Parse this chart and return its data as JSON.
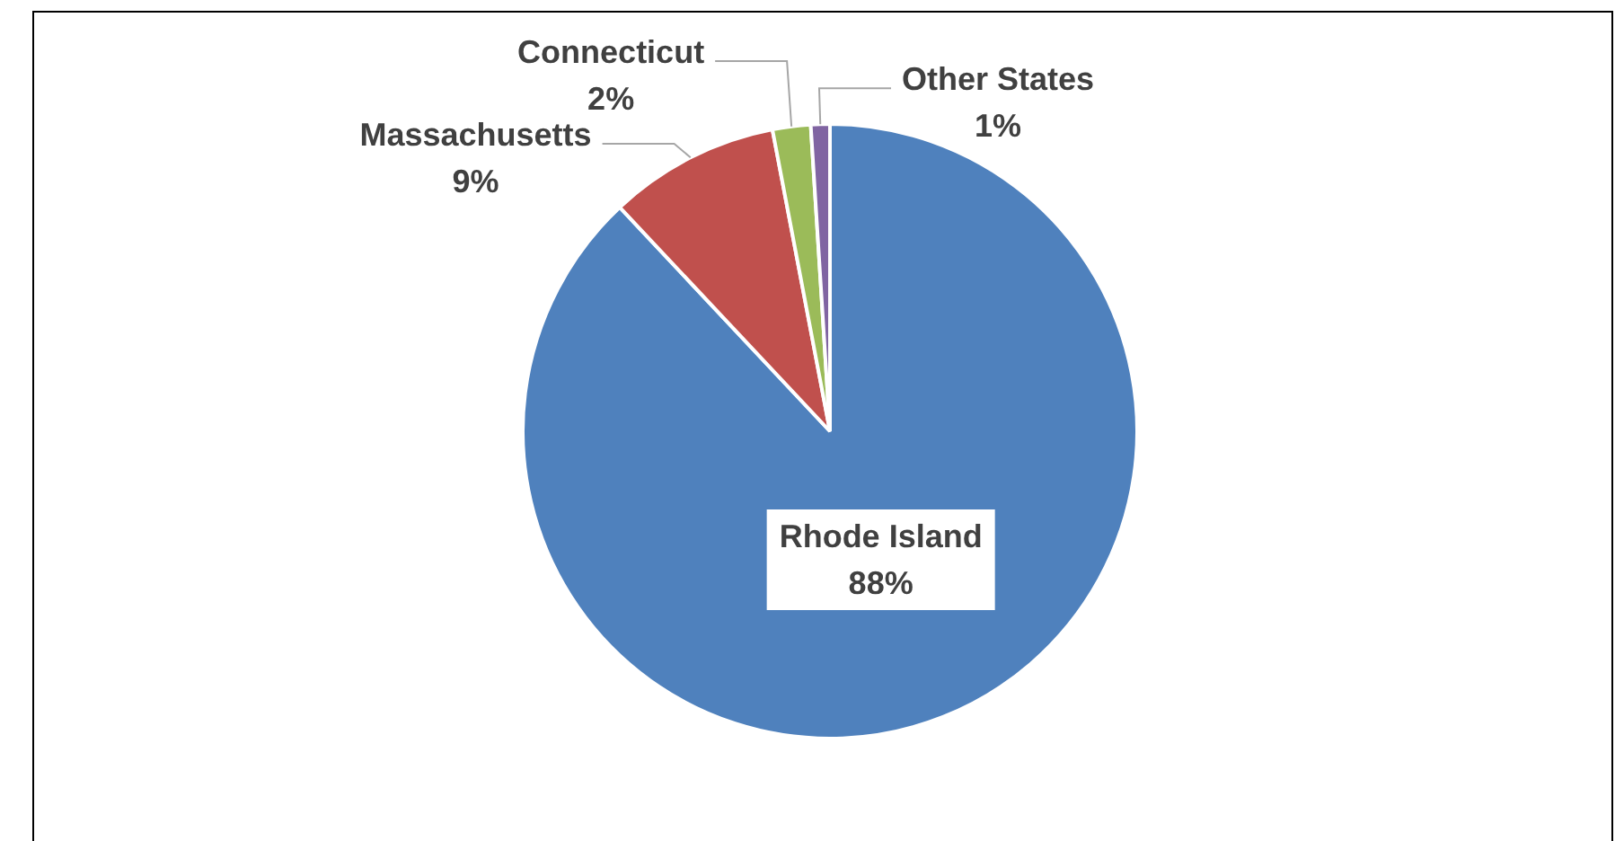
{
  "chart_data": {
    "type": "pie",
    "categories": [
      "Rhode Island",
      "Massachusetts",
      "Connecticut",
      "Other States"
    ],
    "values": [
      88,
      9,
      2,
      1
    ],
    "value_labels": [
      "88%",
      "9%",
      "2%",
      "1%"
    ],
    "colors": [
      "#4f81bd",
      "#c0504d",
      "#9bbb59",
      "#8064a2"
    ],
    "legend": false
  }
}
